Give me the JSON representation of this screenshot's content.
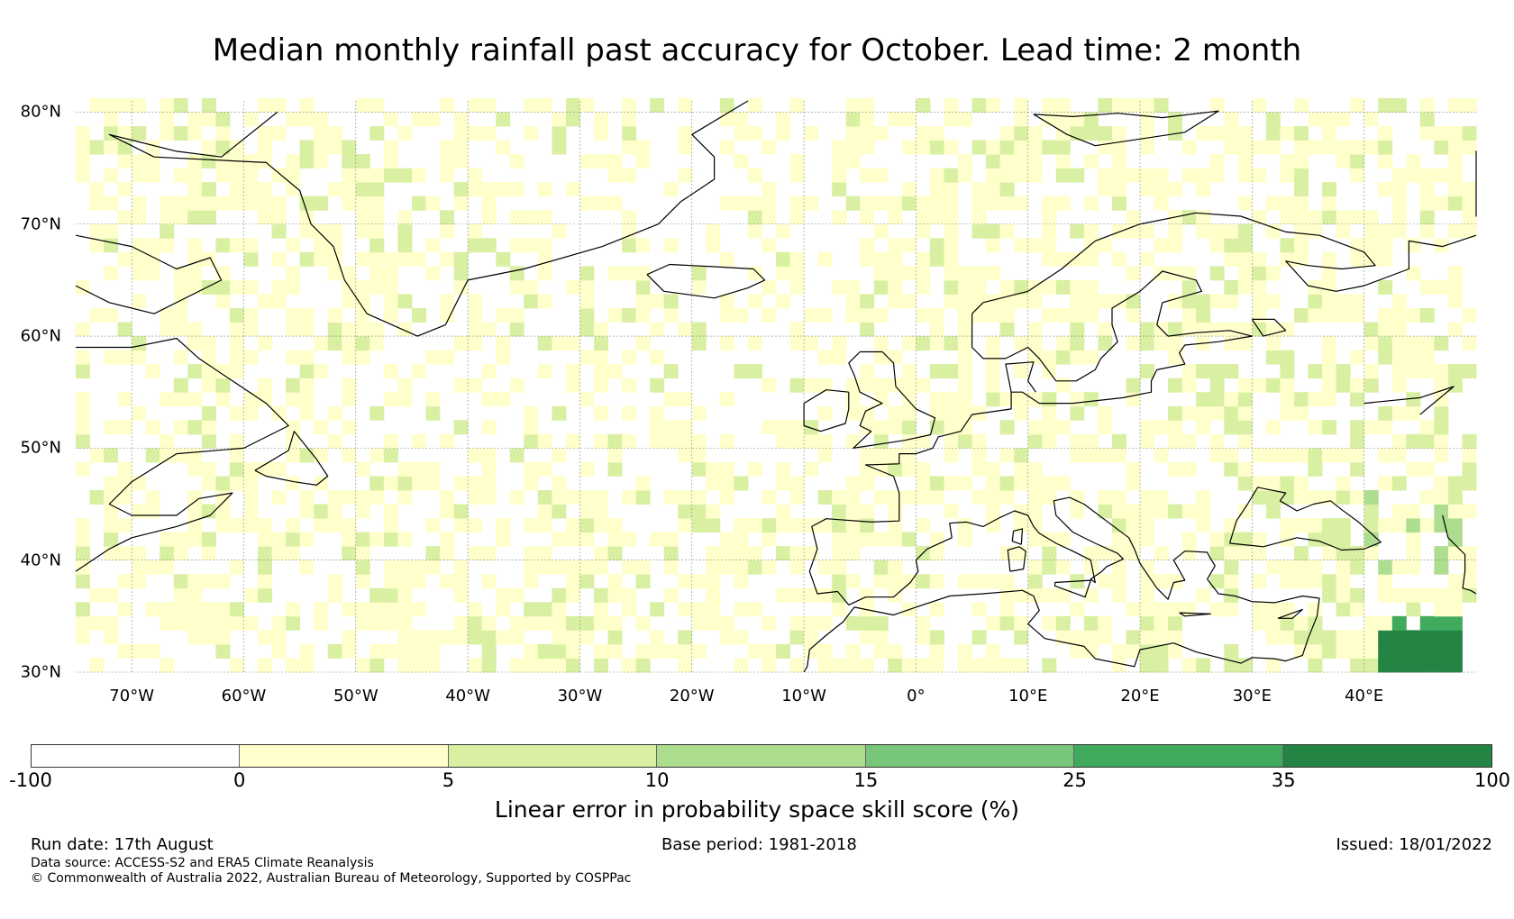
{
  "title": "Median monthly rainfall past accuracy for October. Lead time: 2 month",
  "map": {
    "lon_range": [
      -75,
      50
    ],
    "lat_range": [
      30,
      81
    ],
    "lat_ticks": [
      {
        "value": 80,
        "label": "80°N"
      },
      {
        "value": 70,
        "label": "70°N"
      },
      {
        "value": 60,
        "label": "60°N"
      },
      {
        "value": 50,
        "label": "50°N"
      },
      {
        "value": 40,
        "label": "40°N"
      },
      {
        "value": 30,
        "label": "30°N"
      }
    ],
    "lon_ticks": [
      {
        "value": -70,
        "label": "70°W"
      },
      {
        "value": -60,
        "label": "60°W"
      },
      {
        "value": -50,
        "label": "50°W"
      },
      {
        "value": -40,
        "label": "40°W"
      },
      {
        "value": -30,
        "label": "30°W"
      },
      {
        "value": -20,
        "label": "20°W"
      },
      {
        "value": -10,
        "label": "10°W"
      },
      {
        "value": 0,
        "label": "0°"
      },
      {
        "value": 10,
        "label": "10°E"
      },
      {
        "value": 20,
        "label": "20°E"
      },
      {
        "value": 30,
        "label": "30°E"
      },
      {
        "value": 40,
        "label": "40°E"
      }
    ],
    "gridlines": true,
    "coastline_color": "#000000"
  },
  "colorbar": {
    "label": "Linear error in probability space skill score (%)",
    "boundaries": [
      "-100",
      "0",
      "5",
      "10",
      "15",
      "25",
      "35",
      "100"
    ],
    "colors": [
      "#ffffff",
      "#ffffcc",
      "#d9f0a3",
      "#addd8e",
      "#78c679",
      "#41ab5d",
      "#238443"
    ]
  },
  "footer": {
    "run_date": "Run date: 17th August",
    "base_period": "Base period: 1981-2018",
    "issued": "Issued: 18/01/2022",
    "data_source": "Data source: ACCESS-S2 and ERA5 Climate Reanalysis",
    "copyright": "© Commonwealth of Australia 2022, Australian Bureau of Meteorology, Supported by COSPPac"
  }
}
